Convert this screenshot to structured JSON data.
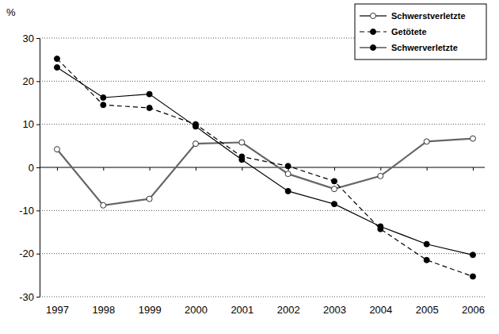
{
  "chart_data": {
    "type": "line",
    "y_label": "%",
    "categories": [
      "1997",
      "1998",
      "1999",
      "2000",
      "2001",
      "2002",
      "2003",
      "2004",
      "2005",
      "2006"
    ],
    "series": [
      {
        "name": "Schwerstverletzte",
        "color": "#666666",
        "marker": "open_circle",
        "line_style": "solid",
        "values": [
          4.2,
          -8.8,
          -7.3,
          5.5,
          5.8,
          -1.5,
          -5.0,
          -2.0,
          6.0,
          6.7
        ]
      },
      {
        "name": "Getötete",
        "color": "#000000",
        "marker": "circle",
        "line_style": "dashed",
        "values": [
          25.2,
          14.5,
          13.8,
          10.0,
          2.5,
          0.3,
          -3.2,
          -14.3,
          -21.5,
          -25.3
        ]
      },
      {
        "name": "Schwerverletzte",
        "color": "#000000",
        "marker": "circle",
        "line_style": "solid",
        "values": [
          23.2,
          16.2,
          17.0,
          9.5,
          1.8,
          -5.5,
          -8.5,
          -13.7,
          -17.8,
          -20.3
        ]
      }
    ],
    "ylim": [
      -30,
      30
    ],
    "yticks": [
      -30,
      -20,
      -10,
      0,
      10,
      20,
      30
    ],
    "grid": true,
    "legend": "top-right"
  }
}
